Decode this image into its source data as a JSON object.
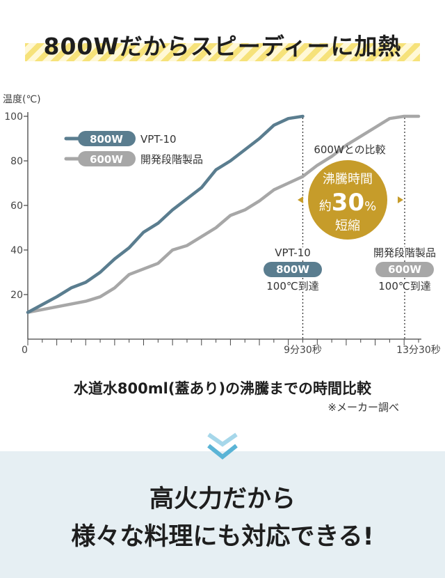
{
  "headline": "800Wだからスピーディーに加熱",
  "chart_data": {
    "type": "line",
    "ylabel": "温度(℃)",
    "ylim": [
      0,
      100
    ],
    "yticks": [
      20,
      40,
      60,
      80,
      100
    ],
    "x_ticks_labels": [
      "0",
      "9分30秒",
      "13分30秒"
    ],
    "x_unit_note": "minutes",
    "xlim": [
      0,
      13.5
    ],
    "series": [
      {
        "name": "VPT-10",
        "badge": "800W",
        "color": "#5a7d8f",
        "x": [
          0,
          0.5,
          1.0,
          1.5,
          2.0,
          2.5,
          3.0,
          3.5,
          4.0,
          4.5,
          5.0,
          5.5,
          6.0,
          6.5,
          7.0,
          7.5,
          8.0,
          8.5,
          9.0,
          9.5
        ],
        "y": [
          12,
          15.5,
          19,
          23,
          25.5,
          30,
          36,
          41,
          48,
          52,
          58,
          63,
          68,
          76,
          80,
          85,
          90,
          96,
          99,
          100
        ]
      },
      {
        "name": "開発段階製品",
        "badge": "600W",
        "color": "#a7a7a7",
        "x": [
          0,
          1,
          2,
          2.5,
          3,
          3.5,
          4,
          4.5,
          5,
          5.5,
          6,
          6.5,
          7,
          7.5,
          8,
          8.5,
          9,
          9.5,
          10,
          10.5,
          11,
          11.5,
          12,
          12.5,
          13,
          13.5
        ],
        "y": [
          12,
          14.5,
          17,
          19,
          23,
          29,
          31.5,
          34,
          40,
          42,
          46,
          50,
          55.5,
          58,
          62,
          67,
          70,
          73,
          78,
          82,
          87,
          91,
          95,
          99,
          100,
          100
        ]
      }
    ],
    "comparison": {
      "title": "600Wとの比較",
      "line1": "沸騰時間",
      "prefix": "約",
      "number": "30",
      "unit": "%",
      "line3": "短縮"
    },
    "annotations": [
      {
        "model": "VPT-10",
        "badge": "800W",
        "text": "100℃到達",
        "badge_color": "#5a7d8f"
      },
      {
        "model": "開発段階製品",
        "badge": "600W",
        "text": "100℃到達",
        "badge_color": "#a7a7a7"
      }
    ]
  },
  "subtitle": "水道水800ml(蓋あり)の沸騰までの時間比較",
  "note": "※メーカー調べ",
  "bottom": {
    "line1": "高火力だから",
    "line2": "様々な料理にも対応できる!"
  },
  "colors": {
    "accent_gold": "#c69c2a",
    "bottom_bg": "#e6eff3",
    "chevron": "#5ab4d6"
  }
}
